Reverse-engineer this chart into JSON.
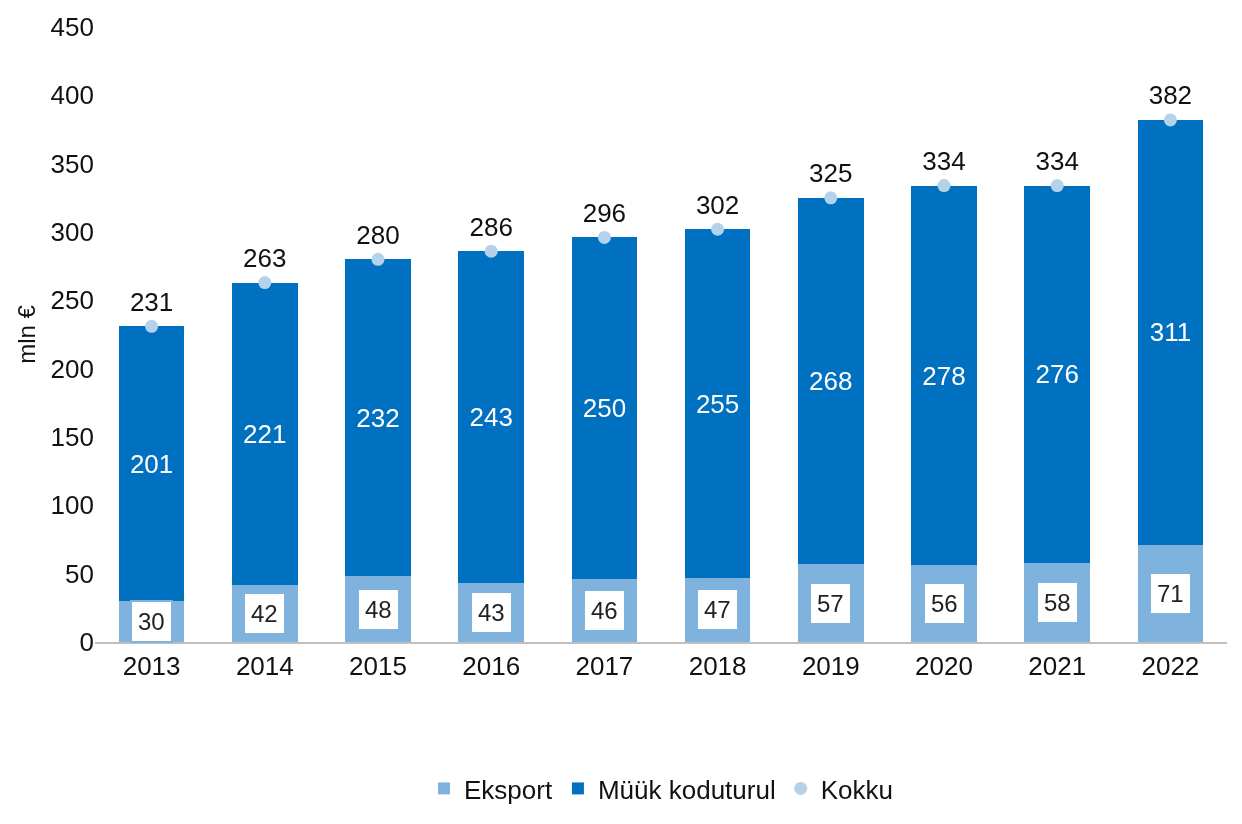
{
  "chart_data": {
    "type": "bar",
    "stacked": true,
    "ylabel": "mln €",
    "categories": [
      "2013",
      "2014",
      "2015",
      "2016",
      "2017",
      "2018",
      "2019",
      "2020",
      "2021",
      "2022"
    ],
    "series": [
      {
        "name": "Eksport",
        "color": "#7fb3de",
        "values": [
          30,
          42,
          48,
          43,
          46,
          47,
          57,
          56,
          58,
          71
        ]
      },
      {
        "name": "Müük koduturul",
        "color": "#0070c0",
        "values": [
          201,
          221,
          232,
          243,
          250,
          255,
          268,
          278,
          276,
          311
        ]
      },
      {
        "name": "Kokku",
        "type": "scatter",
        "color": "#b4d3ea",
        "values": [
          231,
          263,
          280,
          286,
          296,
          302,
          325,
          334,
          334,
          382
        ]
      }
    ],
    "ylim": [
      0,
      450
    ],
    "yticks": [
      0,
      50,
      100,
      150,
      200,
      250,
      300,
      350,
      400,
      450
    ],
    "grid": false,
    "legend": "bottom",
    "marker": "circle",
    "data_labels": true
  }
}
